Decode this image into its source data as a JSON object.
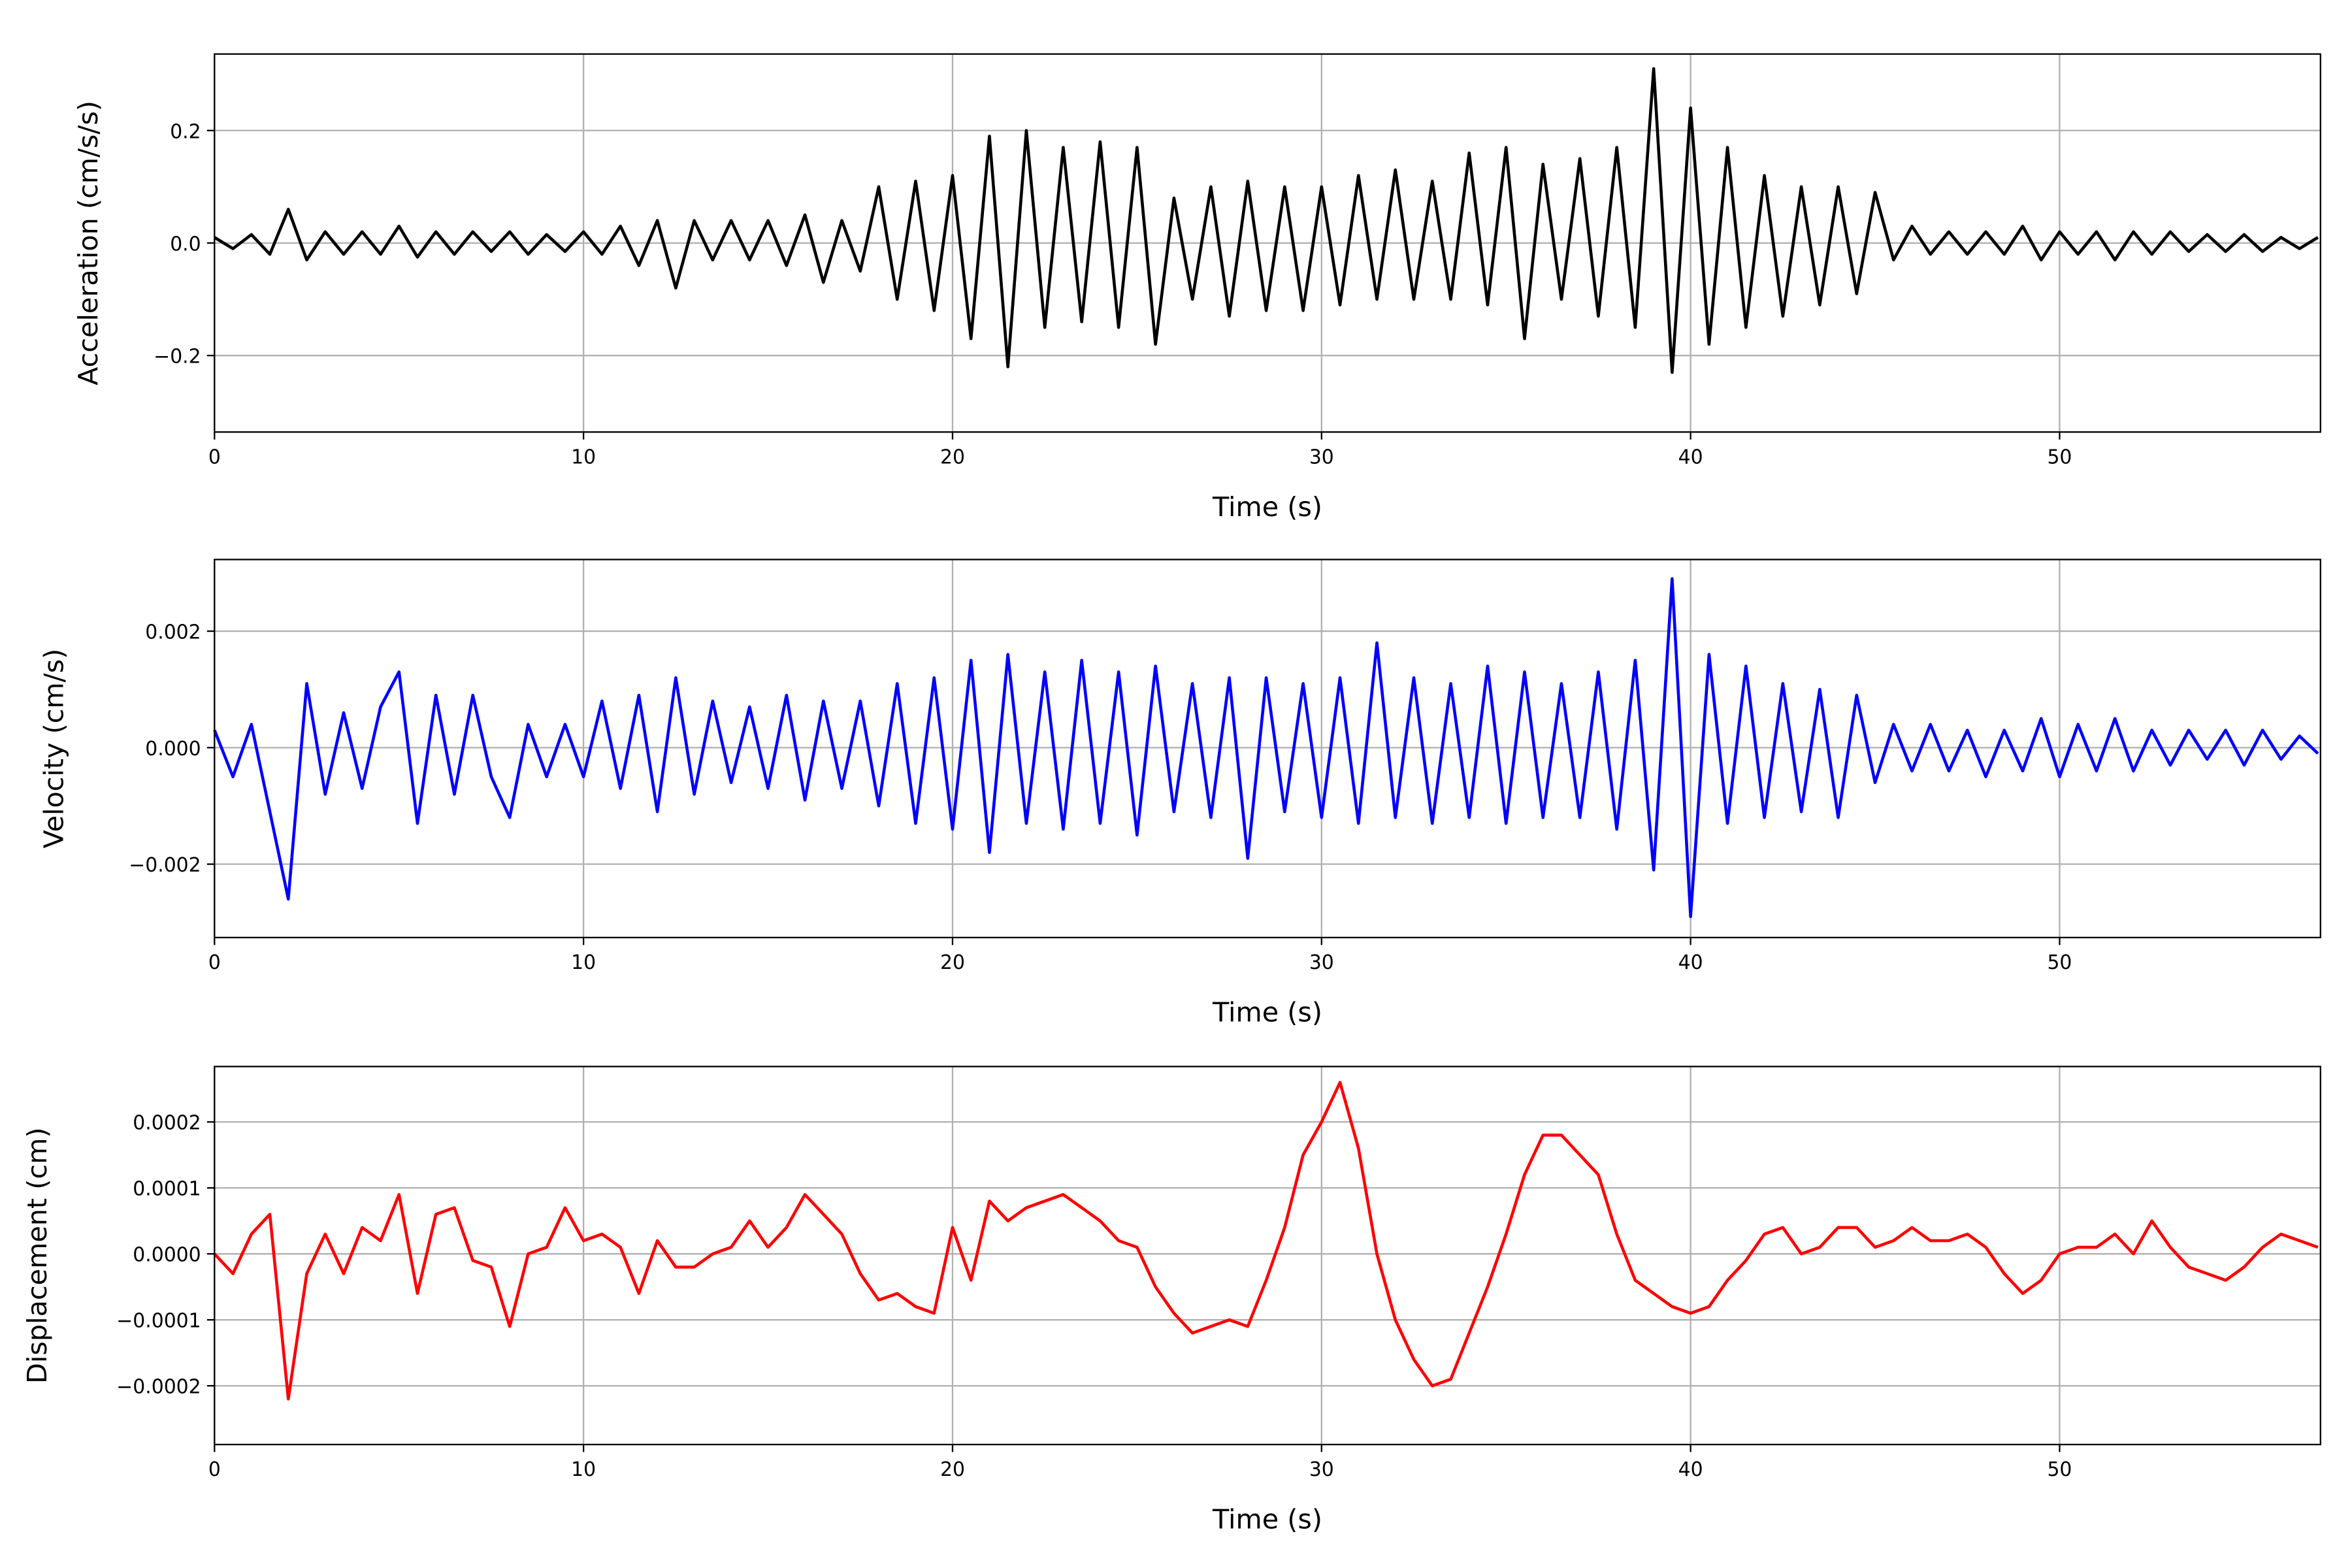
{
  "chart_data": [
    {
      "type": "line",
      "xlabel": "Time (s)",
      "ylabel": "Acceleration (cm/s/s)",
      "color": "#000000",
      "grid": true,
      "xlim": [
        0,
        57.07
      ],
      "xticks": [
        0,
        10,
        20,
        30,
        40,
        50
      ],
      "ylim": [
        -0.336,
        0.336
      ],
      "yticks": [
        {
          "value": -0.2,
          "label": "−0.2"
        },
        {
          "value": 0,
          "label": "0.0"
        },
        0.2
      ],
      "x": [
        0,
        0.5,
        1,
        1.5,
        2,
        2.5,
        3,
        3.5,
        4,
        4.5,
        5,
        5.5,
        6,
        6.5,
        7,
        7.5,
        8,
        8.5,
        9,
        9.5,
        10,
        10.5,
        11,
        11.5,
        12,
        12.5,
        13,
        13.5,
        14,
        14.5,
        15,
        15.5,
        16,
        16.5,
        17,
        17.5,
        18,
        18.5,
        19,
        19.5,
        20,
        20.5,
        21,
        21.5,
        22,
        22.5,
        23,
        23.5,
        24,
        24.5,
        25,
        25.5,
        26,
        26.5,
        27,
        27.5,
        28,
        28.5,
        29,
        29.5,
        30,
        30.5,
        31,
        31.5,
        32,
        32.5,
        33,
        33.5,
        34,
        34.5,
        35,
        35.5,
        36,
        36.5,
        37,
        37.5,
        38,
        38.5,
        39,
        39.5,
        40,
        40.5,
        41,
        41.5,
        42,
        42.5,
        43,
        43.5,
        44,
        44.5,
        45,
        45.5,
        46,
        46.5,
        47,
        47.5,
        48,
        48.5,
        49,
        49.5,
        50,
        50.5,
        51,
        51.5,
        52,
        52.5,
        53,
        53.5,
        54,
        54.5,
        55,
        55.5,
        56,
        56.5,
        57
      ],
      "values": [
        0.01,
        -0.01,
        0.015,
        -0.02,
        0.06,
        -0.03,
        0.02,
        -0.02,
        0.02,
        -0.02,
        0.03,
        -0.025,
        0.02,
        -0.02,
        0.02,
        -0.015,
        0.02,
        -0.02,
        0.015,
        -0.015,
        0.02,
        -0.02,
        0.03,
        -0.04,
        0.04,
        -0.08,
        0.04,
        -0.03,
        0.04,
        -0.03,
        0.04,
        -0.04,
        0.05,
        -0.07,
        0.04,
        -0.05,
        0.1,
        -0.1,
        0.11,
        -0.12,
        0.12,
        -0.17,
        0.19,
        -0.22,
        0.2,
        -0.15,
        0.17,
        -0.14,
        0.18,
        -0.15,
        0.17,
        -0.18,
        0.08,
        -0.1,
        0.1,
        -0.13,
        0.11,
        -0.12,
        0.1,
        -0.12,
        0.1,
        -0.11,
        0.12,
        -0.1,
        0.13,
        -0.1,
        0.11,
        -0.1,
        0.16,
        -0.11,
        0.17,
        -0.17,
        0.14,
        -0.1,
        0.15,
        -0.13,
        0.17,
        -0.15,
        0.31,
        -0.23,
        0.24,
        -0.18,
        0.17,
        -0.15,
        0.12,
        -0.13,
        0.1,
        -0.11,
        0.1,
        -0.09,
        0.09,
        -0.03,
        0.03,
        -0.02,
        0.02,
        -0.02,
        0.02,
        -0.02,
        0.03,
        -0.03,
        0.02,
        -0.02,
        0.02,
        -0.03,
        0.02,
        -0.02,
        0.02,
        -0.015,
        0.015,
        -0.015,
        0.015,
        -0.015,
        0.01,
        -0.01,
        0.01
      ]
    },
    {
      "type": "line",
      "xlabel": "Time (s)",
      "ylabel": "Velocity (cm/s)",
      "color": "#0000ff",
      "grid": true,
      "xlim": [
        0,
        57.07
      ],
      "xticks": [
        0,
        10,
        20,
        30,
        40,
        50
      ],
      "ylim": [
        -0.00326,
        0.00323
      ],
      "yticks": [
        {
          "value": -0.002,
          "label": "−0.002"
        },
        {
          "value": 0,
          "label": "0.000"
        },
        0.002
      ],
      "x": [
        0,
        0.5,
        1,
        1.5,
        2,
        2.5,
        3,
        3.5,
        4,
        4.5,
        5,
        5.5,
        6,
        6.5,
        7,
        7.5,
        8,
        8.5,
        9,
        9.5,
        10,
        10.5,
        11,
        11.5,
        12,
        12.5,
        13,
        13.5,
        14,
        14.5,
        15,
        15.5,
        16,
        16.5,
        17,
        17.5,
        18,
        18.5,
        19,
        19.5,
        20,
        20.5,
        21,
        21.5,
        22,
        22.5,
        23,
        23.5,
        24,
        24.5,
        25,
        25.5,
        26,
        26.5,
        27,
        27.5,
        28,
        28.5,
        29,
        29.5,
        30,
        30.5,
        31,
        31.5,
        32,
        32.5,
        33,
        33.5,
        34,
        34.5,
        35,
        35.5,
        36,
        36.5,
        37,
        37.5,
        38,
        38.5,
        39,
        39.5,
        40,
        40.5,
        41,
        41.5,
        42,
        42.5,
        43,
        43.5,
        44,
        44.5,
        45,
        45.5,
        46,
        46.5,
        47,
        47.5,
        48,
        48.5,
        49,
        49.5,
        50,
        50.5,
        51,
        51.5,
        52,
        52.5,
        53,
        53.5,
        54,
        54.5,
        55,
        55.5,
        56,
        56.5,
        57
      ],
      "values": [
        0.0003,
        -0.0005,
        0.0004,
        -0.0011,
        -0.0026,
        0.0011,
        -0.0008,
        0.0006,
        -0.0007,
        0.0007,
        0.0013,
        -0.0013,
        0.0009,
        -0.0008,
        0.0009,
        -0.0005,
        -0.0012,
        0.0004,
        -0.0005,
        0.0004,
        -0.0005,
        0.0008,
        -0.0007,
        0.0009,
        -0.0011,
        0.0012,
        -0.0008,
        0.0008,
        -0.0006,
        0.0007,
        -0.0007,
        0.0009,
        -0.0009,
        0.0008,
        -0.0007,
        0.0008,
        -0.001,
        0.0011,
        -0.0013,
        0.0012,
        -0.0014,
        0.0015,
        -0.0018,
        0.0016,
        -0.0013,
        0.0013,
        -0.0014,
        0.0015,
        -0.0013,
        0.0013,
        -0.0015,
        0.0014,
        -0.0011,
        0.0011,
        -0.0012,
        0.0012,
        -0.0019,
        0.0012,
        -0.0011,
        0.0011,
        -0.0012,
        0.0012,
        -0.0013,
        0.0018,
        -0.0012,
        0.0012,
        -0.0013,
        0.0011,
        -0.0012,
        0.0014,
        -0.0013,
        0.0013,
        -0.0012,
        0.0011,
        -0.0012,
        0.0013,
        -0.0014,
        0.0015,
        -0.0021,
        0.0029,
        -0.0029,
        0.0016,
        -0.0013,
        0.0014,
        -0.0012,
        0.0011,
        -0.0011,
        0.001,
        -0.0012,
        0.0009,
        -0.0006,
        0.0004,
        -0.0004,
        0.0004,
        -0.0004,
        0.0003,
        -0.0005,
        0.0003,
        -0.0004,
        0.0005,
        -0.0005,
        0.0004,
        -0.0004,
        0.0005,
        -0.0004,
        0.0003,
        -0.0003,
        0.0003,
        -0.0002,
        0.0003,
        -0.0003,
        0.0003,
        -0.0002,
        0.0002,
        -0.0001
      ]
    },
    {
      "type": "line",
      "xlabel": "Time (s)",
      "ylabel": "Displacement (cm)",
      "color": "#ff0000",
      "grid": true,
      "xlim": [
        0,
        57.07
      ],
      "xticks": [
        0,
        10,
        20,
        30,
        40,
        50
      ],
      "ylim": [
        -0.000289,
        0.000284
      ],
      "yticks": [
        {
          "value": -0.0002,
          "label": "−0.0002"
        },
        {
          "value": -0.0001,
          "label": "−0.0001"
        },
        {
          "value": 0,
          "label": "0.0000"
        },
        0.0001,
        0.0002
      ],
      "x": [
        0,
        0.5,
        1,
        1.5,
        2,
        2.5,
        3,
        3.5,
        4,
        4.5,
        5,
        5.5,
        6,
        6.5,
        7,
        7.5,
        8,
        8.5,
        9,
        9.5,
        10,
        10.5,
        11,
        11.5,
        12,
        12.5,
        13,
        13.5,
        14,
        14.5,
        15,
        15.5,
        16,
        16.5,
        17,
        17.5,
        18,
        18.5,
        19,
        19.5,
        20,
        20.5,
        21,
        21.5,
        22,
        22.5,
        23,
        23.5,
        24,
        24.5,
        25,
        25.5,
        26,
        26.5,
        27,
        27.5,
        28,
        28.5,
        29,
        29.5,
        30,
        30.5,
        31,
        31.5,
        32,
        32.5,
        33,
        33.5,
        34,
        34.5,
        35,
        35.5,
        36,
        36.5,
        37,
        37.5,
        38,
        38.5,
        39,
        39.5,
        40,
        40.5,
        41,
        41.5,
        42,
        42.5,
        43,
        43.5,
        44,
        44.5,
        45,
        45.5,
        46,
        46.5,
        47,
        47.5,
        48,
        48.5,
        49,
        49.5,
        50,
        50.5,
        51,
        51.5,
        52,
        52.5,
        53,
        53.5,
        54,
        54.5,
        55,
        55.5,
        56,
        56.5,
        57
      ],
      "values": [
        0,
        -3e-05,
        3e-05,
        6e-05,
        -0.00022,
        -3e-05,
        3e-05,
        -3e-05,
        4e-05,
        2e-05,
        9e-05,
        -6e-05,
        6e-05,
        7e-05,
        -1e-05,
        -2e-05,
        -0.00011,
        0,
        1e-05,
        7e-05,
        2e-05,
        3e-05,
        1e-05,
        -6e-05,
        2e-05,
        -2e-05,
        -2e-05,
        0,
        1e-05,
        5e-05,
        1e-05,
        4e-05,
        9e-05,
        6e-05,
        3e-05,
        -3e-05,
        -7e-05,
        -6e-05,
        -8e-05,
        -9e-05,
        4e-05,
        -4e-05,
        8e-05,
        5e-05,
        7e-05,
        8e-05,
        9e-05,
        7e-05,
        5e-05,
        2e-05,
        1e-05,
        -5e-05,
        -9e-05,
        -0.00012,
        -0.00011,
        -0.0001,
        -0.00011,
        -4e-05,
        4e-05,
        0.00015,
        0.0002,
        0.00026,
        0.00016,
        0,
        -0.0001,
        -0.00016,
        -0.0002,
        -0.00019,
        -0.00012,
        -5e-05,
        3e-05,
        0.00012,
        0.00018,
        0.00018,
        0.00015,
        0.00012,
        3e-05,
        -4e-05,
        -6e-05,
        -8e-05,
        -9e-05,
        -8e-05,
        -4e-05,
        -1e-05,
        3e-05,
        4e-05,
        0,
        1e-05,
        4e-05,
        4e-05,
        1e-05,
        2e-05,
        4e-05,
        2e-05,
        2e-05,
        3e-05,
        1e-05,
        -3e-05,
        -6e-05,
        -4e-05,
        0,
        1e-05,
        1e-05,
        3e-05,
        0,
        5e-05,
        1e-05,
        -2e-05,
        -3e-05,
        -4e-05,
        -2e-05,
        1e-05,
        3e-05,
        2e-05,
        1e-05
      ]
    }
  ]
}
